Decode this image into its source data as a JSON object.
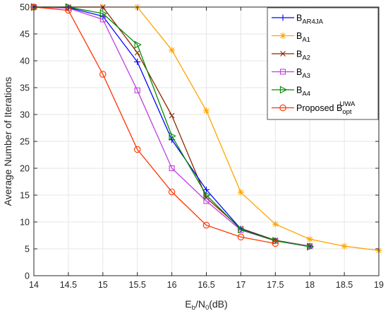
{
  "chart_data": {
    "type": "line",
    "xlabel": {
      "main": "E",
      "sub1": "b",
      "mid": "/N",
      "sub2": "0",
      "tail": "(dB)"
    },
    "ylabel": "Average Number of Iterations",
    "xlim": [
      14,
      19
    ],
    "ylim": [
      0,
      50
    ],
    "xticks": [
      14,
      14.5,
      15,
      15.5,
      16,
      16.5,
      17,
      17.5,
      18,
      18.5,
      19
    ],
    "yticks": [
      0,
      5,
      10,
      15,
      20,
      25,
      30,
      35,
      40,
      45,
      50
    ],
    "grid": true,
    "legend_position": "top-right",
    "series": [
      {
        "name": "B",
        "sub": "AR4JA",
        "sup": "",
        "color": "#0000ff",
        "marker": "plus",
        "x": [
          14,
          14.5,
          15,
          15.5,
          16,
          16.5,
          17,
          17.5,
          18
        ],
        "y": [
          50,
          49.9,
          48.3,
          39.8,
          25.3,
          16.0,
          8.7,
          6.5,
          5.5
        ]
      },
      {
        "name": "B",
        "sub": "A1",
        "sup": "",
        "color": "#ffa500",
        "marker": "asterisk",
        "x": [
          14,
          14.5,
          15,
          15.5,
          16,
          16.5,
          17,
          17.5,
          18,
          18.5,
          19
        ],
        "y": [
          50,
          50,
          50,
          50,
          42.0,
          30.7,
          15.5,
          9.6,
          6.8,
          5.5,
          4.7
        ]
      },
      {
        "name": "B",
        "sub": "A2",
        "sup": "",
        "color": "#8b2500",
        "marker": "x",
        "x": [
          14,
          14.5,
          15,
          15.5,
          16,
          16.5,
          17,
          17.5,
          18
        ],
        "y": [
          50,
          50,
          50,
          41.5,
          29.8,
          14.5,
          8.8,
          6.6,
          5.5
        ]
      },
      {
        "name": "B",
        "sub": "A3",
        "sup": "",
        "color": "#bf3fdf",
        "marker": "square",
        "x": [
          14,
          14.5,
          15,
          15.5,
          16,
          16.5,
          17,
          17.5,
          18
        ],
        "y": [
          50,
          49.8,
          47.7,
          34.5,
          20.0,
          13.9,
          8.5,
          6.5,
          5.5
        ]
      },
      {
        "name": "B",
        "sub": "A4",
        "sup": "",
        "color": "#008a00",
        "marker": "triangle-right",
        "x": [
          14,
          14.5,
          15,
          15.5,
          16,
          16.5,
          17,
          17.5,
          18
        ],
        "y": [
          50,
          50,
          48.8,
          43.0,
          26.0,
          15.0,
          8.6,
          6.5,
          5.4
        ]
      },
      {
        "name": "Proposed B",
        "sub": "opt",
        "sup": "UWA",
        "color": "#ff3300",
        "marker": "circle",
        "x": [
          14,
          14.5,
          15,
          15.5,
          16,
          16.5,
          17,
          17.5
        ],
        "y": [
          50,
          49.4,
          37.5,
          23.5,
          15.6,
          9.4,
          7.2,
          6.0
        ]
      }
    ]
  }
}
